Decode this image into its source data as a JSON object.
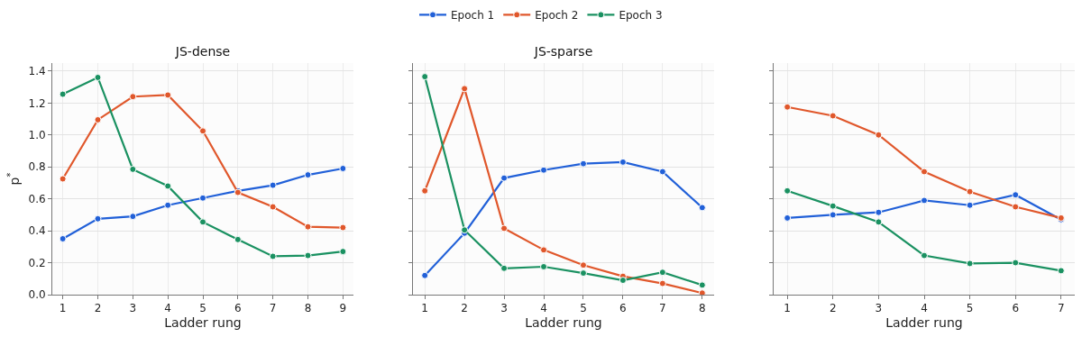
{
  "chart_data": [
    {
      "type": "line",
      "title": "JS-dense",
      "xlabel": "Ladder rung",
      "ylabel": "p$^{*}$",
      "x": [
        1,
        2,
        3,
        4,
        5,
        6,
        7,
        8,
        9
      ],
      "xlim": [
        0.7,
        9.3
      ],
      "xticks": [
        1,
        2,
        3,
        4,
        5,
        6,
        7,
        8,
        9
      ],
      "ylim": [
        0,
        1.45
      ],
      "yticks": [
        {
          "value": 0,
          "label": "0.0"
        },
        0.2,
        0.4,
        0.6,
        0.8,
        {
          "value": 1,
          "label": "1.0"
        },
        1.2,
        1.4
      ],
      "grid": true,
      "legend": "top",
      "marker": "circle",
      "line_style": "solid",
      "series": [
        {
          "name": "Epoch 1",
          "color": "#2160d8",
          "values": [
            0.35,
            0.475,
            0.49,
            0.56,
            0.605,
            0.65,
            0.685,
            0.75,
            0.79
          ]
        },
        {
          "name": "Epoch 2",
          "color": "#e0572b",
          "values": [
            0.725,
            1.095,
            1.24,
            1.25,
            1.025,
            0.64,
            0.55,
            0.425,
            0.42
          ]
        },
        {
          "name": "Epoch 3",
          "color": "#1a9161",
          "values": [
            1.255,
            1.36,
            0.785,
            0.68,
            0.455,
            0.345,
            0.24,
            0.245,
            0.27
          ]
        }
      ]
    },
    {
      "type": "line",
      "title": "JS-sparse",
      "xlabel": "Ladder rung",
      "x": [
        1,
        2,
        3,
        4,
        5,
        6,
        7,
        8
      ],
      "xlim": [
        0.7,
        8.3
      ],
      "xticks": [
        1,
        2,
        3,
        4,
        5,
        6,
        7,
        8
      ],
      "ylim": [
        0,
        1.45
      ],
      "yticks": [
        0,
        0.2,
        0.4,
        0.6,
        0.8,
        1,
        1.2,
        1.4
      ],
      "tick_labels": "x",
      "grid": true,
      "marker": "circle",
      "line_style": "solid",
      "series": [
        {
          "color": "#2160d8",
          "values": [
            0.12,
            0.385,
            0.73,
            0.78,
            0.82,
            0.83,
            0.77,
            0.545
          ]
        },
        {
          "color": "#e0572b",
          "values": [
            0.65,
            1.29,
            0.415,
            0.28,
            0.185,
            0.115,
            0.07,
            0.01
          ]
        },
        {
          "color": "#1a9161",
          "values": [
            1.365,
            0.405,
            0.165,
            0.175,
            0.135,
            0.09,
            0.14,
            0.06
          ]
        }
      ]
    },
    {
      "type": "line",
      "xlabel": "Ladder rung",
      "x": [
        1,
        2,
        3,
        4,
        5,
        6,
        7
      ],
      "xlim": [
        0.7,
        7.3
      ],
      "xticks": [
        1,
        2,
        3,
        4,
        5,
        6,
        7
      ],
      "ylim": [
        0,
        1.45
      ],
      "yticks": [
        0,
        0.2,
        0.4,
        0.6,
        0.8,
        1,
        1.2,
        1.4
      ],
      "tick_labels": "x",
      "grid": true,
      "marker": "circle",
      "line_style": "solid",
      "series": [
        {
          "color": "#2160d8",
          "values": [
            0.48,
            0.5,
            0.515,
            0.59,
            0.56,
            0.625,
            0.47
          ]
        },
        {
          "color": "#e0572b",
          "values": [
            1.175,
            1.12,
            1.0,
            0.77,
            0.645,
            0.55,
            0.48
          ]
        },
        {
          "color": "#1a9161",
          "values": [
            0.65,
            0.555,
            0.455,
            0.245,
            0.195,
            0.2,
            0.15
          ]
        }
      ]
    }
  ]
}
